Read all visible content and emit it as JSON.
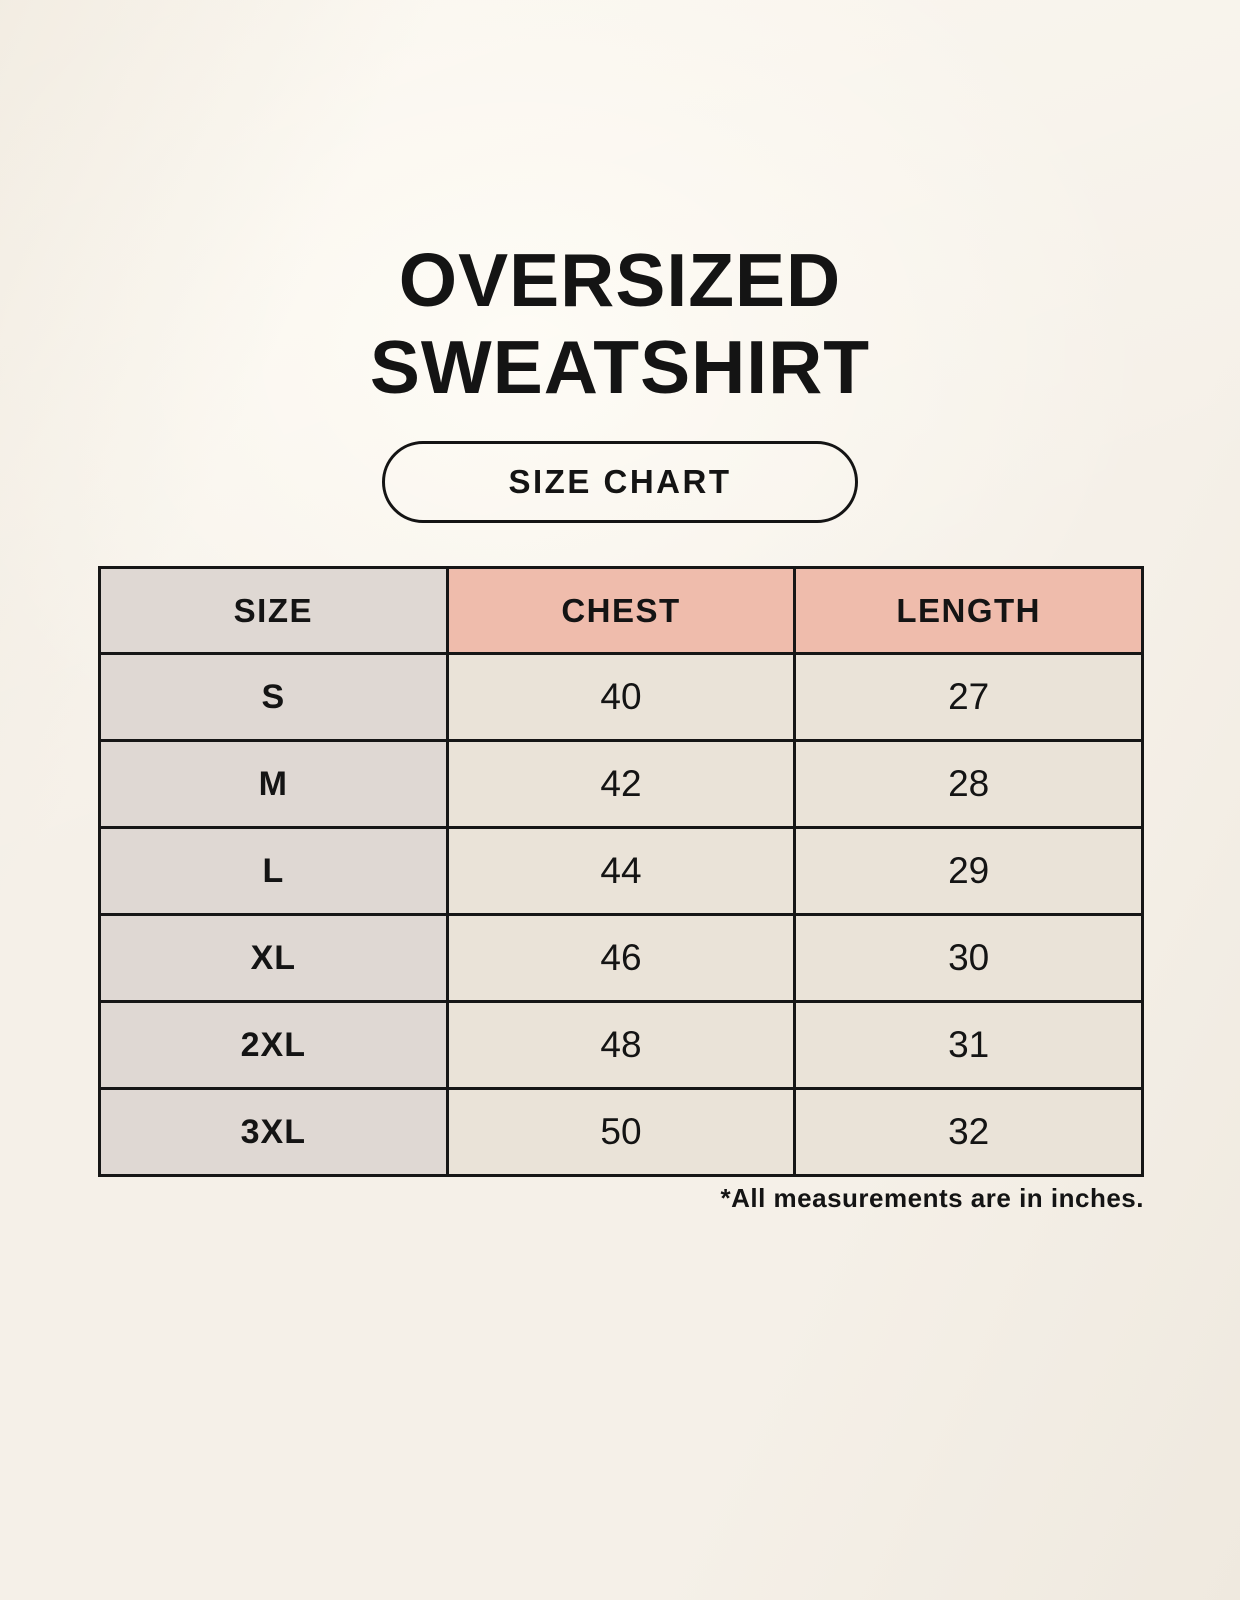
{
  "title": {
    "line1": "OVERSIZED",
    "line2": "SWEATSHIRT"
  },
  "badge": {
    "label": "SIZE CHART"
  },
  "footnote": "*All measurements are in inches.",
  "colors": {
    "background": "#F5F0E8",
    "header_pink": "#EFBCAC",
    "column_gray": "#DFD8D3",
    "cell_cream": "#EAE3D8",
    "border": "#161616",
    "text": "#141414"
  },
  "chart_data": {
    "type": "table",
    "title": "OVERSIZED SWEATSHIRT SIZE CHART",
    "columns": [
      "SIZE",
      "CHEST",
      "LENGTH"
    ],
    "rows": [
      {
        "size": "S",
        "chest": 40,
        "length": 27
      },
      {
        "size": "M",
        "chest": 42,
        "length": 28
      },
      {
        "size": "L",
        "chest": 44,
        "length": 29
      },
      {
        "size": "XL",
        "chest": 46,
        "length": 30
      },
      {
        "size": "2XL",
        "chest": 48,
        "length": 31
      },
      {
        "size": "3XL",
        "chest": 50,
        "length": 32
      }
    ],
    "units": "inches",
    "layout": {
      "grid": true,
      "header_fill": [
        "gray",
        "pink",
        "pink"
      ],
      "first_column_fill": "gray"
    }
  }
}
